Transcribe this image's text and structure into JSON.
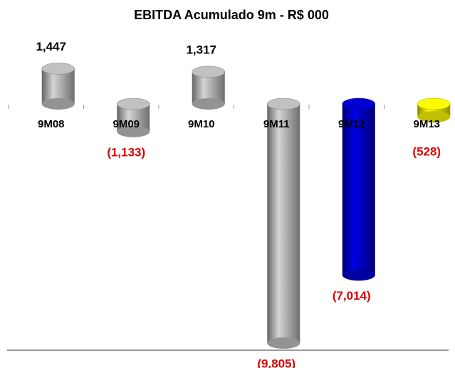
{
  "chart_data": {
    "type": "bar",
    "title": "EBITDA Acumulado 9m - R$ 000",
    "categories": [
      "9M08",
      "9M09",
      "9M10",
      "9M11",
      "9M12",
      "9M13"
    ],
    "values": [
      1447,
      -1133,
      1317,
      -9805,
      -7014,
      -528
    ],
    "value_labels": [
      "1,447",
      "(1,133)",
      "1,317",
      "(9,805)",
      "(7,014)",
      "(528)"
    ],
    "colors": [
      "#b8b8b8",
      "#b8b8b8",
      "#b8b8b8",
      "#b8b8b8",
      "#0000c8",
      "#f0f000"
    ]
  }
}
